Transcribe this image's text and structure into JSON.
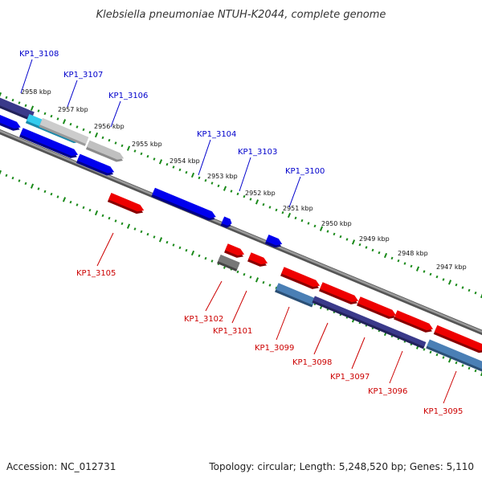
{
  "title": "Klebsiella pneumoniae NTUH-K2044, complete genome",
  "footer": {
    "accession": "Accession: NC_012731",
    "summary": "Topology: circular; Length: 5,248,520 bp; Genes: 5,110"
  },
  "colors": {
    "forward_label": "#0000cc",
    "reverse_label": "#cc0000",
    "tick": "#1a8a1a",
    "backbone": "#7a7a7a"
  },
  "scale_labels": [
    "2958 kbp",
    "2957 kbp",
    "2956 kbp",
    "2955 kbp",
    "2954 kbp",
    "2953 kbp",
    "2952 kbp",
    "2951 kbp",
    "2950 kbp",
    "2949 kbp",
    "2948 kbp",
    "2947 kbp"
  ],
  "forward_genes": [
    "KP1_3108",
    "KP1_3107",
    "KP1_3106",
    "KP1_3104",
    "KP1_3103",
    "KP1_3100"
  ],
  "reverse_genes": [
    "KP1_3105",
    "KP1_3102",
    "KP1_3101",
    "KP1_3099",
    "KP1_3098",
    "KP1_3097",
    "KP1_3096",
    "KP1_3095"
  ]
}
